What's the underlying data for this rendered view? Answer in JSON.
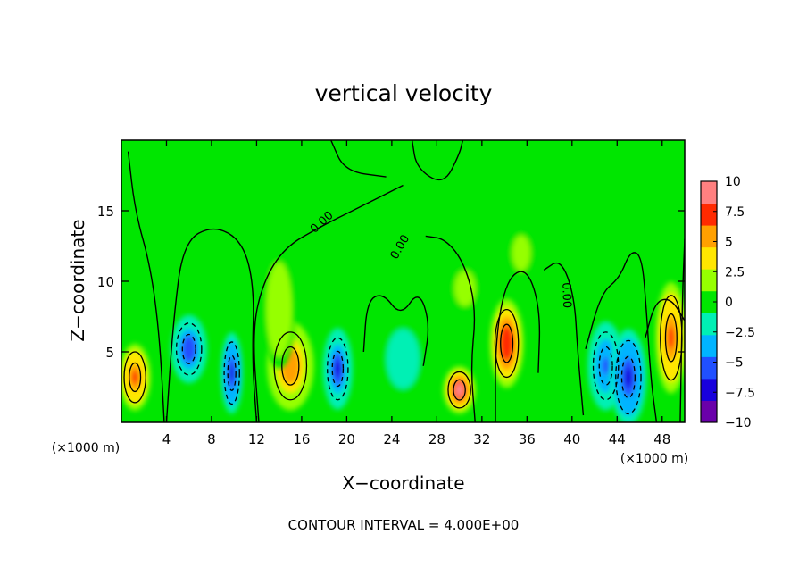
{
  "chart_data": {
    "type": "heatmap",
    "title": "vertical velocity",
    "xlabel": "X−coordinate",
    "ylabel": "Z−coordinate",
    "x_unit_left": "(×1000 m)",
    "x_unit_right": "(×1000 m)",
    "xlim": [
      0,
      50
    ],
    "ylim": [
      0,
      20
    ],
    "xticks": [
      4,
      8,
      12,
      16,
      20,
      24,
      28,
      32,
      36,
      40,
      44,
      48
    ],
    "yticks": [
      5,
      10,
      15
    ],
    "contour_label": "0.00",
    "footer": "CONTOUR INTERVAL = 4.000E+00",
    "colorbar": {
      "ticks": [
        10,
        7.5,
        5,
        2.5,
        0,
        -2.5,
        -5,
        -7.5,
        -10
      ],
      "tick_labels": [
        "10",
        "7.5",
        "5",
        "2.5",
        "0",
        "−2.5",
        "−5",
        "−7.5",
        "−10"
      ],
      "colors": [
        "#6a00aa",
        "#1800dc",
        "#2050ff",
        "#00b4ff",
        "#00f0b4",
        "#00e600",
        "#96ff00",
        "#ffe600",
        "#ffa000",
        "#ff2a00",
        "#ff8080"
      ]
    },
    "cells": [
      {
        "x": 1.2,
        "z": 3.2,
        "w": 2.4,
        "h": 4.5,
        "v": 7.5
      },
      {
        "x": 6.0,
        "z": 5.2,
        "w": 2.8,
        "h": 4.6,
        "v": -6
      },
      {
        "x": 9.8,
        "z": 3.5,
        "w": 1.7,
        "h": 5.5,
        "v": -7
      },
      {
        "x": 15.0,
        "z": 4.0,
        "w": 3.6,
        "h": 6.0,
        "v": 6
      },
      {
        "x": 19.2,
        "z": 3.8,
        "w": 2.3,
        "h": 5.5,
        "v": -6.5
      },
      {
        "x": 25.0,
        "z": 4.5,
        "w": 3.2,
        "h": 5.0,
        "v": -2.5
      },
      {
        "x": 30.0,
        "z": 2.3,
        "w": 2.5,
        "h": 3.2,
        "v": 9
      },
      {
        "x": 34.2,
        "z": 5.6,
        "w": 2.6,
        "h": 6.0,
        "v": 8
      },
      {
        "x": 43.0,
        "z": 4.0,
        "w": 2.8,
        "h": 6.0,
        "v": -5
      },
      {
        "x": 45.0,
        "z": 3.2,
        "w": 2.8,
        "h": 6.5,
        "v": -7.5
      },
      {
        "x": 48.8,
        "z": 6.0,
        "w": 2.4,
        "h": 7.5,
        "v": 7
      },
      {
        "x": 14.0,
        "z": 8.0,
        "w": 2.5,
        "h": 8.0,
        "v": 2.5
      },
      {
        "x": 30.5,
        "z": 9.5,
        "w": 4.0,
        "h": 6.0,
        "v": 1.5
      },
      {
        "x": 35.5,
        "z": 12.0,
        "w": 3.5,
        "h": 6.0,
        "v": 1.5
      }
    ]
  }
}
